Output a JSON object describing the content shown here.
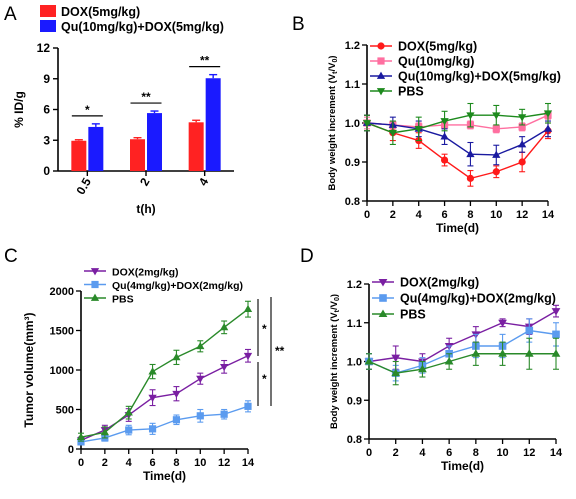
{
  "chart_data": [
    {
      "panel": "A",
      "type": "bar",
      "categories": [
        "0.5",
        "2",
        "4"
      ],
      "series": [
        {
          "name": "DOX(5mg/kg)",
          "color": "#ff2222",
          "values": [
            2.95,
            3.1,
            4.75
          ],
          "errors": [
            0.1,
            0.15,
            0.2
          ]
        },
        {
          "name": "Qu(10mg/kg)+DOX(5mg/kg)",
          "color": "#1a1aff",
          "values": [
            4.3,
            5.65,
            9.05
          ],
          "errors": [
            0.3,
            0.2,
            0.35
          ]
        }
      ],
      "xlabel": "t(h)",
      "ylabel": "% ID/g",
      "ylim": [
        0,
        12
      ],
      "yticks": [
        "0",
        "3",
        "6",
        "9",
        "12"
      ],
      "significance": [
        "*",
        "**",
        "**"
      ],
      "legend_position": "top-left"
    },
    {
      "panel": "B",
      "type": "line",
      "x": [
        0,
        2,
        4,
        6,
        8,
        10,
        12,
        14
      ],
      "series": [
        {
          "name": "DOX(5mg/kg)",
          "color": "#ff1a1a",
          "marker": "circle",
          "values": [
            1.0,
            0.975,
            0.955,
            0.905,
            0.858,
            0.875,
            0.9,
            0.98
          ],
          "errors": [
            0.02,
            0.02,
            0.02,
            0.015,
            0.02,
            0.015,
            0.025,
            0.02
          ]
        },
        {
          "name": "Qu(10mg/kg)",
          "color": "#ff6fa0",
          "marker": "square",
          "values": [
            1.0,
            0.995,
            0.99,
            0.995,
            0.995,
            0.985,
            0.99,
            1.02
          ],
          "errors": [
            0.015,
            0.01,
            0.01,
            0.01,
            0.01,
            0.01,
            0.01,
            0.01
          ]
        },
        {
          "name": "Qu(10mg/kg)+DOX(5mg/kg)",
          "color": "#1a1aa0",
          "marker": "triangle-up",
          "values": [
            1.0,
            0.995,
            0.985,
            0.965,
            0.92,
            0.918,
            0.945,
            0.985
          ],
          "errors": [
            0.02,
            0.02,
            0.02,
            0.02,
            0.03,
            0.025,
            0.02,
            0.02
          ]
        },
        {
          "name": "PBS",
          "color": "#1d8a1d",
          "marker": "triangle-down",
          "values": [
            1.0,
            0.975,
            0.985,
            1.005,
            1.02,
            1.02,
            1.015,
            1.025
          ],
          "errors": [
            0.02,
            0.03,
            0.03,
            0.025,
            0.03,
            0.025,
            0.02,
            0.025
          ]
        }
      ],
      "xlabel": "Time(d)",
      "ylabel": "Body weight increment (Vt/V0)",
      "ylim": [
        0.8,
        1.2
      ],
      "xticks": [
        "0",
        "2",
        "4",
        "6",
        "8",
        "10",
        "12",
        "14"
      ],
      "yticks": [
        "0.8",
        "0.9",
        "1.0",
        "1.1",
        "1.2"
      ],
      "legend_position": "top"
    },
    {
      "panel": "C",
      "type": "line",
      "x": [
        0,
        2,
        4,
        6,
        8,
        10,
        12,
        14
      ],
      "series": [
        {
          "name": "DOX(2mg/kg)",
          "color": "#7a1fa2",
          "marker": "triangle-down",
          "values": [
            110,
            240,
            430,
            650,
            700,
            890,
            1040,
            1180
          ],
          "errors": [
            40,
            60,
            80,
            100,
            90,
            70,
            80,
            80
          ]
        },
        {
          "name": "Qu(4mg/kg)+DOX(2mg/kg)",
          "color": "#5b9bef",
          "marker": "square",
          "values": [
            90,
            140,
            240,
            255,
            370,
            420,
            440,
            540
          ],
          "errors": [
            30,
            40,
            60,
            70,
            60,
            80,
            60,
            70
          ]
        },
        {
          "name": "PBS",
          "color": "#2a8a2a",
          "marker": "triangle-up",
          "values": [
            150,
            210,
            460,
            980,
            1160,
            1300,
            1540,
            1770
          ],
          "errors": [
            50,
            70,
            80,
            90,
            90,
            70,
            80,
            100
          ]
        }
      ],
      "xlabel": "Time(d)",
      "ylabel": "Tumor volume(mm³)",
      "ylim": [
        0,
        2000
      ],
      "xticks": [
        "0",
        "2",
        "4",
        "6",
        "8",
        "10",
        "12",
        "14"
      ],
      "yticks": [
        "0",
        "500",
        "1000",
        "1500",
        "2000"
      ],
      "significance": [
        "*",
        "*",
        "**"
      ],
      "legend_position": "top-left"
    },
    {
      "panel": "D",
      "type": "line",
      "x": [
        0,
        2,
        4,
        6,
        8,
        10,
        12,
        14
      ],
      "series": [
        {
          "name": "DOX(2mg/kg)",
          "color": "#7a1fa2",
          "marker": "triangle-down",
          "values": [
            1.0,
            1.01,
            1.0,
            1.04,
            1.07,
            1.1,
            1.09,
            1.13
          ],
          "errors": [
            0.02,
            0.03,
            0.02,
            0.02,
            0.02,
            0.01,
            0.02,
            0.015
          ]
        },
        {
          "name": "Qu(4mg/kg)+DOX(2mg/kg)",
          "color": "#5b9bef",
          "marker": "square",
          "values": [
            1.0,
            0.97,
            0.99,
            1.02,
            1.04,
            1.04,
            1.08,
            1.07
          ],
          "errors": [
            0.02,
            0.02,
            0.02,
            0.02,
            0.03,
            0.03,
            0.03,
            0.03
          ]
        },
        {
          "name": "PBS",
          "color": "#2a8a2a",
          "marker": "triangle-up",
          "values": [
            1.0,
            0.97,
            0.98,
            1.0,
            1.02,
            1.02,
            1.02,
            1.02
          ],
          "errors": [
            0.02,
            0.03,
            0.02,
            0.02,
            0.03,
            0.03,
            0.04,
            0.04
          ]
        }
      ],
      "xlabel": "Time(d)",
      "ylabel": "Body weight increment (Vt/V0)",
      "ylim": [
        0.8,
        1.2
      ],
      "xticks": [
        "0",
        "2",
        "4",
        "6",
        "8",
        "10",
        "12",
        "14"
      ],
      "yticks": [
        "0.8",
        "0.9",
        "1.0",
        "1.1",
        "1.2"
      ],
      "legend_position": "top"
    }
  ]
}
